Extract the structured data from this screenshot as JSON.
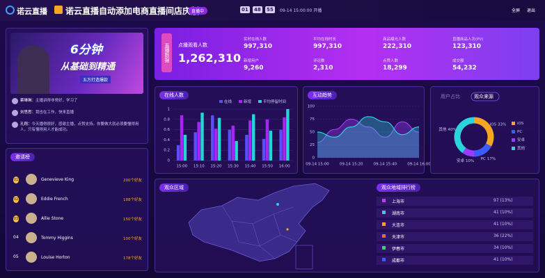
{
  "header": {
    "logo": "诺云直播",
    "title": "诺云直播自动添加电商直播间店庆版",
    "status": "直播中",
    "timer": [
      "01",
      "48",
      "55"
    ],
    "start_time": "09-14 15:00:00 开播",
    "actions": [
      "全屏",
      "退出"
    ]
  },
  "video": {
    "cover": [
      "6分钟",
      "从基础到精通",
      "五万打造爆款"
    ],
    "comments": [
      {
        "user": "蔡琳琳：",
        "text": "主播讲得非常好，学习了"
      },
      {
        "user": "刘思思：",
        "text": "我也在工作，快来直播"
      },
      {
        "user": "孔翔：",
        "text": "今天播得很好，感谢主播，点赞支持。你要做大就必须要懂得用人，只有懂得用人才能成功。"
      }
    ]
  },
  "invite": {
    "title": "邀请榜",
    "rows": [
      {
        "rank": "01",
        "name": "Genevieve King",
        "count": "200个好友"
      },
      {
        "rank": "02",
        "name": "Eddie French",
        "count": "188个好友"
      },
      {
        "rank": "03",
        "name": "Allie Stone",
        "count": "150个好友"
      },
      {
        "rank": "04",
        "name": "Tommy Higgins",
        "count": "100个好友"
      },
      {
        "rank": "05",
        "name": "Louise Horton",
        "count": "178个好友"
      }
    ]
  },
  "stats": {
    "title": "直播数据",
    "main": {
      "label": "点播观看人数",
      "value": "1,262,310"
    },
    "items": [
      {
        "label": "实时在线人数",
        "value": "997,310"
      },
      {
        "label": "平均在线时长",
        "value": "997,310"
      },
      {
        "label": "商品曝光人数",
        "value": "222,310"
      },
      {
        "label": "直播商品人次(PV)",
        "value": "123,310"
      },
      {
        "label": "新增用户",
        "value": "9,260"
      },
      {
        "label": "评论数",
        "value": "2,310"
      },
      {
        "label": "点赞人数",
        "value": "18,299"
      },
      {
        "label": "成交额",
        "value": "54,232"
      }
    ]
  },
  "chart_data": [
    {
      "type": "bar",
      "title": "在线人数",
      "categories": [
        "15:00",
        "15:10",
        "15:20",
        "15:30",
        "15:40",
        "15:50",
        "16:00"
      ],
      "series": [
        {
          "name": "在线",
          "color": "#5c4dff",
          "values": [
            0.3,
            0.55,
            0.88,
            0.6,
            0.5,
            0.42,
            0.6
          ]
        },
        {
          "name": "新增",
          "color": "#a726f5",
          "values": [
            0.88,
            0.75,
            0.62,
            0.68,
            0.78,
            0.8,
            0.84
          ]
        },
        {
          "name": "平均停留时间",
          "color": "#22d6d6",
          "values": [
            0.5,
            0.93,
            0.83,
            0.38,
            0.9,
            0.58,
            1
          ]
        }
      ],
      "ylim": [
        0,
        1
      ],
      "yticks": [
        0,
        0.2,
        0.4,
        0.6,
        0.8,
        1
      ],
      "grid": true
    },
    {
      "type": "line",
      "title": "互动趋势",
      "categories": [
        "09-14 15:00",
        null,
        "09-14 15:20",
        null,
        "09-14 15:40",
        null,
        "09-14 16:00"
      ],
      "series": [
        {
          "color": "#a23cf5",
          "values": [
            30,
            55,
            75,
            60,
            40,
            70,
            50
          ]
        },
        {
          "color": "#2ad4d9",
          "values": [
            50,
            40,
            60,
            80,
            70,
            45,
            60
          ]
        }
      ],
      "ylim": [
        0,
        100
      ],
      "yticks": [
        0,
        25,
        50,
        75,
        100
      ],
      "grid": true
    },
    {
      "type": "pie",
      "tabs": [
        "用户占比",
        "观众来源"
      ],
      "categories": [
        "iOS",
        "PC",
        "安卓",
        "其他"
      ],
      "values": [
        33,
        17,
        10,
        40
      ],
      "value_labels": [
        "33%",
        "17%",
        "10%",
        "40%"
      ],
      "colors": [
        "#f5a623",
        "#3b5bff",
        "#9b3bff",
        "#2ad4d9"
      ]
    }
  ],
  "map": {
    "title": "观众区域"
  },
  "region_rank": {
    "title": "观众地域排行榜",
    "rows": [
      {
        "name": "上海市",
        "value": "97 (13%)"
      },
      {
        "name": "湖南市",
        "value": "41 (10%)"
      },
      {
        "name": "大连市",
        "value": "41 (10%)"
      },
      {
        "name": "天津市",
        "value": "36 (22%)"
      },
      {
        "name": "伊春市",
        "value": "34 (10%)"
      },
      {
        "name": "成都市",
        "value": "41 (10%)"
      }
    ]
  }
}
